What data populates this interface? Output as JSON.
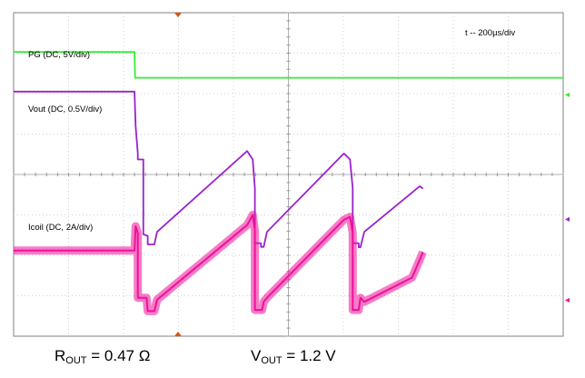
{
  "chart_data": {
    "type": "line",
    "title": "",
    "timebase_label": "t -- 200µs/div",
    "grid": true,
    "divisions": {
      "x": 10,
      "y": 8
    },
    "x_unit": "div",
    "y_unit": "div",
    "xlim": [
      0,
      10
    ],
    "ylim": [
      0,
      8
    ],
    "series": [
      {
        "name": "PG (DC, 5V/div)",
        "color": "#33ee33",
        "x": [
          0,
          2.2,
          2.21,
          10
        ],
        "y": [
          7.03,
          7.03,
          6.39,
          6.39
        ]
      },
      {
        "name": "Vout (DC, 0.5V/div)",
        "color": "#9922cc",
        "x": [
          0,
          2.2,
          2.22,
          2.26,
          2.26,
          2.36,
          2.36,
          2.44,
          2.44,
          2.56,
          2.61,
          4.25,
          4.35,
          4.39,
          4.39,
          4.5,
          4.5,
          4.55,
          4.61,
          6.01,
          6.12,
          6.17,
          6.17,
          6.28,
          6.28,
          6.31,
          6.38,
          7.39,
          7.39,
          7.45
        ],
        "y": [
          6.05,
          6.05,
          5.2,
          4.52,
          4.37,
          4.37,
          2.52,
          2.48,
          2.27,
          2.27,
          2.58,
          4.58,
          4.37,
          3.66,
          2.3,
          2.3,
          2.21,
          2.21,
          2.58,
          4.52,
          4.37,
          3.66,
          2.3,
          2.3,
          2.2,
          2.2,
          2.58,
          3.71,
          3.71,
          3.65
        ]
      },
      {
        "name": "Icoil (DC, 2A/div)",
        "color": "#ee1199",
        "x": [
          0,
          2.2,
          2.22,
          2.26,
          2.26,
          2.42,
          2.44,
          2.52,
          2.56,
          2.61,
          4.25,
          4.35,
          4.39,
          4.39,
          4.52,
          4.55,
          4.61,
          6.01,
          6.12,
          6.17,
          6.17,
          6.28,
          6.31,
          6.38,
          7.25,
          7.45
        ],
        "y": [
          2.12,
          2.12,
          2.72,
          2.55,
          0.95,
          0.95,
          0.62,
          0.62,
          0.62,
          0.9,
          2.75,
          3.0,
          2.6,
          0.65,
          0.65,
          0.85,
          0.95,
          2.88,
          2.95,
          2.55,
          0.65,
          0.65,
          0.95,
          0.85,
          1.45,
          2.08
        ]
      }
    ],
    "annotations": [
      "PG (DC, 5V/div)",
      "Vout (DC, 0.5V/div)",
      "Icoil (DC, 2A/div)"
    ]
  },
  "caption": {
    "rout_main": "R",
    "rout_sub": "OUT",
    "rout_rest": " = 0.47 Ω",
    "vout_main": "V",
    "vout_sub": "OUT",
    "vout_rest": " = 1.2 V"
  }
}
